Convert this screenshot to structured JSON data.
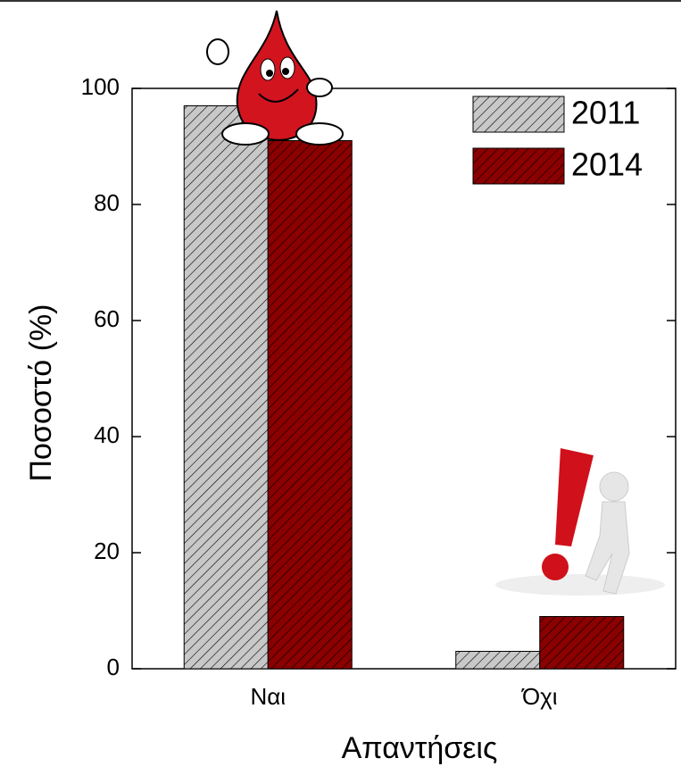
{
  "chart_data": {
    "type": "bar",
    "xlabel": "Απαντήσεις",
    "ylabel": "Ποσοστό  (%)",
    "categories": [
      "Ναι",
      "Όχι"
    ],
    "series": [
      {
        "name": "2011",
        "color": "#c8c8c8",
        "values": [
          97,
          3
        ]
      },
      {
        "name": "2014",
        "color": "#8b0000",
        "values": [
          91,
          9
        ]
      }
    ],
    "ylim": [
      0,
      100
    ],
    "yticks": [
      0,
      20,
      40,
      60,
      80,
      100
    ],
    "hatch": true,
    "legend": "upper right"
  }
}
